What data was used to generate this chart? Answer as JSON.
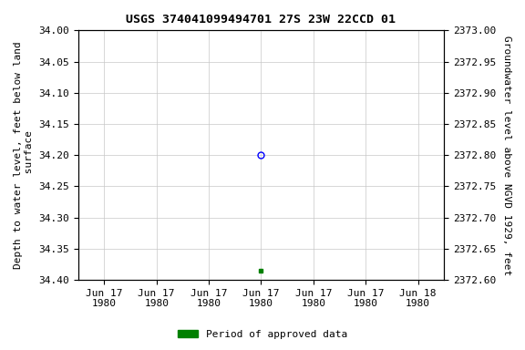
{
  "title": "USGS 374041099494701 27S 23W 22CCD 01",
  "ylabel_left": "Depth to water level, feet below land\n surface",
  "ylabel_right": "Groundwater level above NGVD 1929, feet",
  "ylim_left": [
    34.4,
    34.0
  ],
  "ylim_right": [
    2372.6,
    2373.0
  ],
  "yticks_left": [
    34.0,
    34.05,
    34.1,
    34.15,
    34.2,
    34.25,
    34.3,
    34.35,
    34.4
  ],
  "yticks_right": [
    2372.6,
    2372.65,
    2372.7,
    2372.75,
    2372.8,
    2372.85,
    2372.9,
    2372.95,
    2373.0
  ],
  "ytick_labels_left": [
    "34.00",
    "34.05",
    "34.10",
    "34.15",
    "34.20",
    "34.25",
    "34.30",
    "34.35",
    "34.40"
  ],
  "ytick_labels_right": [
    "2372.60",
    "2372.65",
    "2372.70",
    "2372.75",
    "2372.80",
    "2372.85",
    "2372.90",
    "2372.95",
    "2373.00"
  ],
  "open_circle_tick_index": 3,
  "green_square_tick_index": 3,
  "data_open_circle_value": 34.2,
  "data_green_square_value": 34.385,
  "xtick_labels": [
    "Jun 17\n1980",
    "Jun 17\n1980",
    "Jun 17\n1980",
    "Jun 17\n1980",
    "Jun 17\n1980",
    "Jun 17\n1980",
    "Jun 18\n1980"
  ],
  "num_xticks": 7,
  "background_color": "#ffffff",
  "grid_color": "#c8c8c8",
  "title_fontsize": 9.5,
  "axis_label_fontsize": 8,
  "tick_fontsize": 8,
  "legend_label": "Period of approved data",
  "legend_color": "#008000"
}
